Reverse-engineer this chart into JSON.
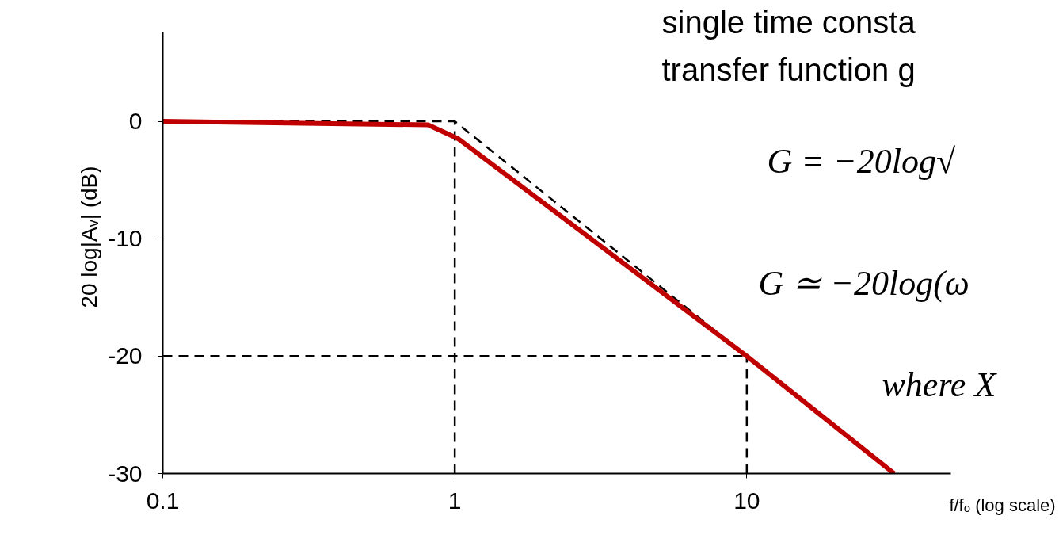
{
  "chart_data": {
    "type": "line",
    "xlabel": "f/fₒ (log scale)",
    "ylabel": "20 log|Aᵥ| (dB)",
    "log": "x",
    "xlim": [
      0.1,
      50
    ],
    "ylim": [
      -30,
      7.6
    ],
    "xticks": [
      0.1,
      1,
      10
    ],
    "yticks": [
      -30,
      -20,
      -10,
      0
    ],
    "grid": false,
    "series": [
      {
        "color": "#000000",
        "line_style": "dashed",
        "x": [
          0.1,
          1,
          10,
          32
        ],
        "values": [
          0,
          0,
          -20,
          -30
        ]
      },
      {
        "color": "#000000",
        "line_style": "dashed",
        "x": [
          1,
          1
        ],
        "values": [
          -30,
          0
        ]
      },
      {
        "color": "#000000",
        "line_style": "dashed",
        "x": [
          10,
          10
        ],
        "values": [
          -30,
          -20
        ]
      },
      {
        "color": "#000000",
        "line_style": "dashed",
        "x": [
          0.1,
          10
        ],
        "values": [
          -20,
          -20
        ]
      },
      {
        "color": "#c00000",
        "line_style": "solid",
        "x": [
          0.1,
          0.81,
          1.03,
          10,
          32
        ],
        "values": [
          0,
          -0.3,
          -1.5,
          -20,
          -30
        ]
      }
    ],
    "annotations": [
      "single time consta",
      "transfer function g",
      "G = −20log√",
      "G ≃ −20log(ω",
      "where  X"
    ]
  }
}
